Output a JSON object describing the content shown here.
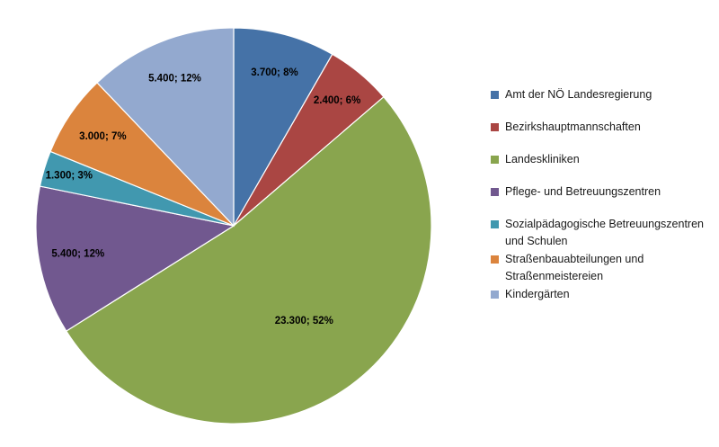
{
  "chart_data": {
    "type": "pie",
    "title": "",
    "legend_position": "right",
    "slices": [
      {
        "name": "Amt der NÖ Landesregierung",
        "value": 3700,
        "label": "3.700; 8%",
        "color": "#4572A7"
      },
      {
        "name": "Bezirkshauptmannschaften",
        "value": 2400,
        "label": "2.400; 6%",
        "color": "#AA4643"
      },
      {
        "name": "Landeskliniken",
        "value": 23300,
        "label": "23.300; 52%",
        "color": "#89A54E"
      },
      {
        "name": "Pflege- und Betreuungszentren",
        "value": 5400,
        "label": "5.400; 12%",
        "color": "#71588F"
      },
      {
        "name": "Sozialpädagogische Betreuungszentren und Schulen",
        "value": 1300,
        "label": "1.300; 3%",
        "color": "#4198AF"
      },
      {
        "name": "Straßenbauabteilungen und Straßenmeistereien",
        "value": 3000,
        "label": "3.000; 7%",
        "color": "#DB843D"
      },
      {
        "name": "Kindergärten",
        "value": 5400,
        "label": "5.400; 12%",
        "color": "#93A9CF"
      }
    ]
  }
}
